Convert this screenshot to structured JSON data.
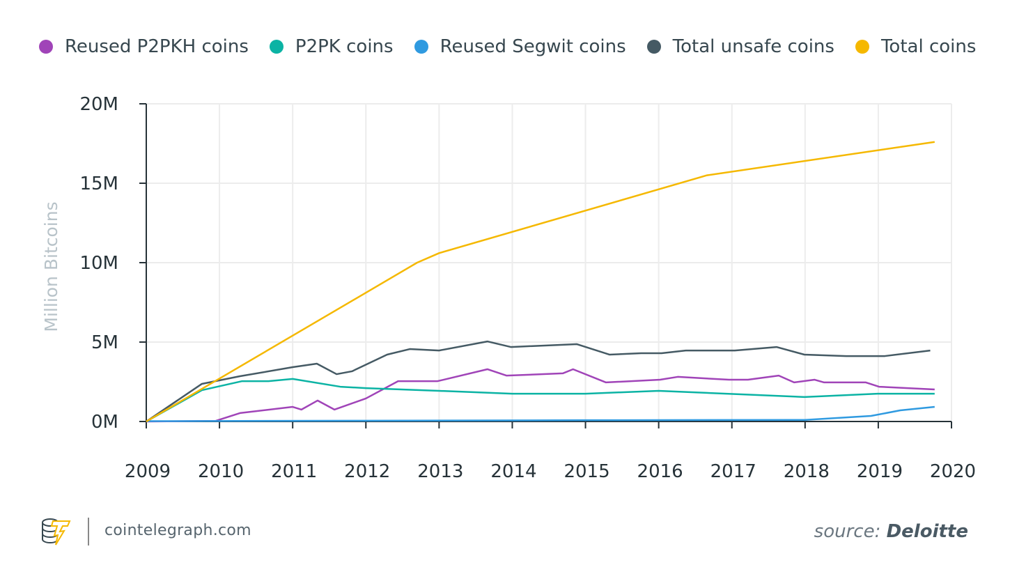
{
  "chart_data": {
    "type": "line",
    "title": "",
    "xlabel": "",
    "ylabel": "Million Bitcoins",
    "xlim": [
      2009,
      2020
    ],
    "ylim": [
      0,
      20
    ],
    "x_ticks": [
      "2009",
      "2010",
      "2011",
      "2012",
      "2013",
      "2014",
      "2015",
      "2016",
      "2017",
      "2018",
      "2019",
      "2020"
    ],
    "y_ticks": [
      "0M",
      "5M",
      "10M",
      "15M",
      "20M"
    ],
    "grid": true,
    "legend_position": "top",
    "series": [
      {
        "name": "Reused P2PKH coins",
        "color": "#a044b8",
        "points": [
          [
            2009,
            0
          ],
          [
            2009.95,
            0.04
          ],
          [
            2010.28,
            0.53
          ],
          [
            2011.0,
            0.92
          ],
          [
            2011.12,
            0.75
          ],
          [
            2011.34,
            1.32
          ],
          [
            2011.57,
            0.75
          ],
          [
            2012.0,
            1.45
          ],
          [
            2012.44,
            2.54
          ],
          [
            2012.98,
            2.54
          ],
          [
            2013.66,
            3.29
          ],
          [
            2013.92,
            2.89
          ],
          [
            2014.69,
            3.03
          ],
          [
            2014.83,
            3.29
          ],
          [
            2015.28,
            2.46
          ],
          [
            2016.02,
            2.63
          ],
          [
            2016.26,
            2.81
          ],
          [
            2016.96,
            2.63
          ],
          [
            2017.22,
            2.63
          ],
          [
            2017.64,
            2.89
          ],
          [
            2017.85,
            2.46
          ],
          [
            2018.13,
            2.63
          ],
          [
            2018.26,
            2.46
          ],
          [
            2018.83,
            2.46
          ],
          [
            2019.01,
            2.19
          ],
          [
            2019.77,
            2.02
          ]
        ]
      },
      {
        "name": "P2PK coins",
        "color": "#0bb3a4",
        "points": [
          [
            2009,
            0
          ],
          [
            2009.76,
            1.97
          ],
          [
            2010.31,
            2.54
          ],
          [
            2010.67,
            2.54
          ],
          [
            2011.0,
            2.68
          ],
          [
            2011.65,
            2.19
          ],
          [
            2012.0,
            2.1
          ],
          [
            2013.0,
            1.93
          ],
          [
            2014.0,
            1.75
          ],
          [
            2015.0,
            1.75
          ],
          [
            2016.0,
            1.93
          ],
          [
            2017.99,
            1.54
          ],
          [
            2018.99,
            1.75
          ],
          [
            2019.77,
            1.75
          ]
        ]
      },
      {
        "name": "Reused Segwit coins",
        "color": "#2f9ae0",
        "points": [
          [
            2009,
            0.02
          ],
          [
            2012,
            0.05
          ],
          [
            2015,
            0.08
          ],
          [
            2018,
            0.1
          ],
          [
            2018.9,
            0.35
          ],
          [
            2019.3,
            0.7
          ],
          [
            2019.77,
            0.92
          ]
        ]
      },
      {
        "name": "Total unsafe coins",
        "color": "#455a64",
        "points": [
          [
            2009,
            0
          ],
          [
            2009.76,
            2.37
          ],
          [
            2010.28,
            2.85
          ],
          [
            2011.0,
            3.42
          ],
          [
            2011.33,
            3.64
          ],
          [
            2011.6,
            2.98
          ],
          [
            2011.81,
            3.16
          ],
          [
            2012.29,
            4.21
          ],
          [
            2012.6,
            4.56
          ],
          [
            2013.0,
            4.47
          ],
          [
            2013.66,
            5.04
          ],
          [
            2013.98,
            4.69
          ],
          [
            2014.88,
            4.87
          ],
          [
            2015.33,
            4.21
          ],
          [
            2015.76,
            4.3
          ],
          [
            2016.04,
            4.3
          ],
          [
            2016.37,
            4.47
          ],
          [
            2017.04,
            4.47
          ],
          [
            2017.61,
            4.69
          ],
          [
            2017.99,
            4.21
          ],
          [
            2018.56,
            4.12
          ],
          [
            2019.09,
            4.12
          ],
          [
            2019.71,
            4.47
          ]
        ]
      },
      {
        "name": "Total coins",
        "color": "#f5b800",
        "points": [
          [
            2009,
            0
          ],
          [
            2012.7,
            10.0
          ],
          [
            2013.0,
            10.6
          ],
          [
            2016.66,
            15.5
          ],
          [
            2019.77,
            17.6
          ]
        ]
      }
    ]
  },
  "footer": {
    "site": "cointelegraph.com",
    "source_prefix": "source: ",
    "source_name": "Deloitte"
  }
}
